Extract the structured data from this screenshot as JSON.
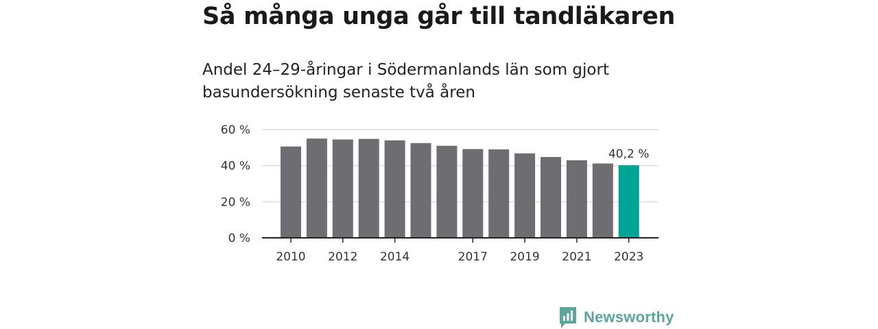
{
  "header": {
    "title": "Så många unga går till tandläkaren",
    "subtitle": "Andel 24–29-åringar i Södermanlands län som gjort basundersökning senaste två åren"
  },
  "brand": {
    "name": "Newsworthy",
    "icon": "newsworthy-logo-icon",
    "color": "#5aa89c"
  },
  "colors": {
    "bar": "#6d6d72",
    "highlight": "#00a496",
    "grid": "#dcdcdc",
    "axis": "#222222"
  },
  "chart_data": {
    "type": "bar",
    "title": "Så många unga går till tandläkaren",
    "subtitle": "Andel 24–29-åringar i Södermanlands län som gjort basundersökning senaste två åren",
    "categories": [
      "2010",
      "2011",
      "2012",
      "2013",
      "2014",
      "2015",
      "2016",
      "2017",
      "2018",
      "2019",
      "2020",
      "2021",
      "2022",
      "2023"
    ],
    "values": [
      50.6,
      55.0,
      54.5,
      54.8,
      54.0,
      52.5,
      51.0,
      49.2,
      49.0,
      46.8,
      44.8,
      43.0,
      41.2,
      40.2
    ],
    "highlight_index": 13,
    "highlight_label": "40,2 %",
    "x_tick_labels": [
      "2010",
      "2012",
      "2014",
      "2017",
      "2019",
      "2021",
      "2023"
    ],
    "y_ticks": [
      0,
      20,
      40,
      60
    ],
    "y_tick_labels": [
      "0 %",
      "20 %",
      "40 %",
      "60 %"
    ],
    "ylim": [
      0,
      60
    ],
    "xlabel": "",
    "ylabel": "",
    "grid": true,
    "legend": "none"
  }
}
